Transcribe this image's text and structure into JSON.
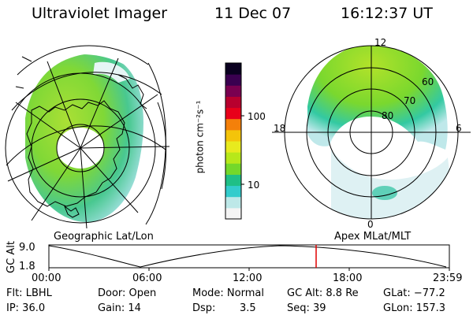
{
  "header": {
    "instrument": "Ultraviolet Imager",
    "date": "11 Dec 07",
    "time": "16:12:37 UT"
  },
  "colorbar": {
    "unit_label": "photon cm⁻²s⁻¹",
    "ticks": [
      "100",
      "10"
    ],
    "colors": [
      "#f4f4f4",
      "#bde8e8",
      "#33cccc",
      "#1fbf86",
      "#74d82a",
      "#b7e81a",
      "#e8ea1e",
      "#f4c40a",
      "#f4800a",
      "#e8001a",
      "#b8002e",
      "#7a0050",
      "#3a0050",
      "#0a0020"
    ]
  },
  "left_map": {
    "caption": "Geographic Lat/Lon"
  },
  "right_map": {
    "caption": "Apex MLat/MLT",
    "lat_labels": [
      "60",
      "70",
      "80"
    ],
    "mlt_labels": {
      "top": "12",
      "left": "18",
      "right": "6",
      "bottom": "0"
    }
  },
  "altitude_plot": {
    "ylabel": "GC Alt",
    "yticks": [
      "9.0",
      "1.8"
    ],
    "xticks": [
      "00:00",
      "06:00",
      "12:00",
      "18:00",
      "23:59"
    ],
    "marker_color": "#e00000"
  },
  "footer": {
    "filter": "Flt: LBHL",
    "ip": "IP: 36.0",
    "door": "Door: Open",
    "gain": "Gain: 14",
    "mode": "Mode:  Normal",
    "dsp_label": "Dsp:",
    "dsp_value": "3.5",
    "gc_alt": "GC Alt: 8.8 Re",
    "seq": "Seq: 39",
    "glat": "GLat: −77.2",
    "glon": "GLon: 157.3"
  }
}
